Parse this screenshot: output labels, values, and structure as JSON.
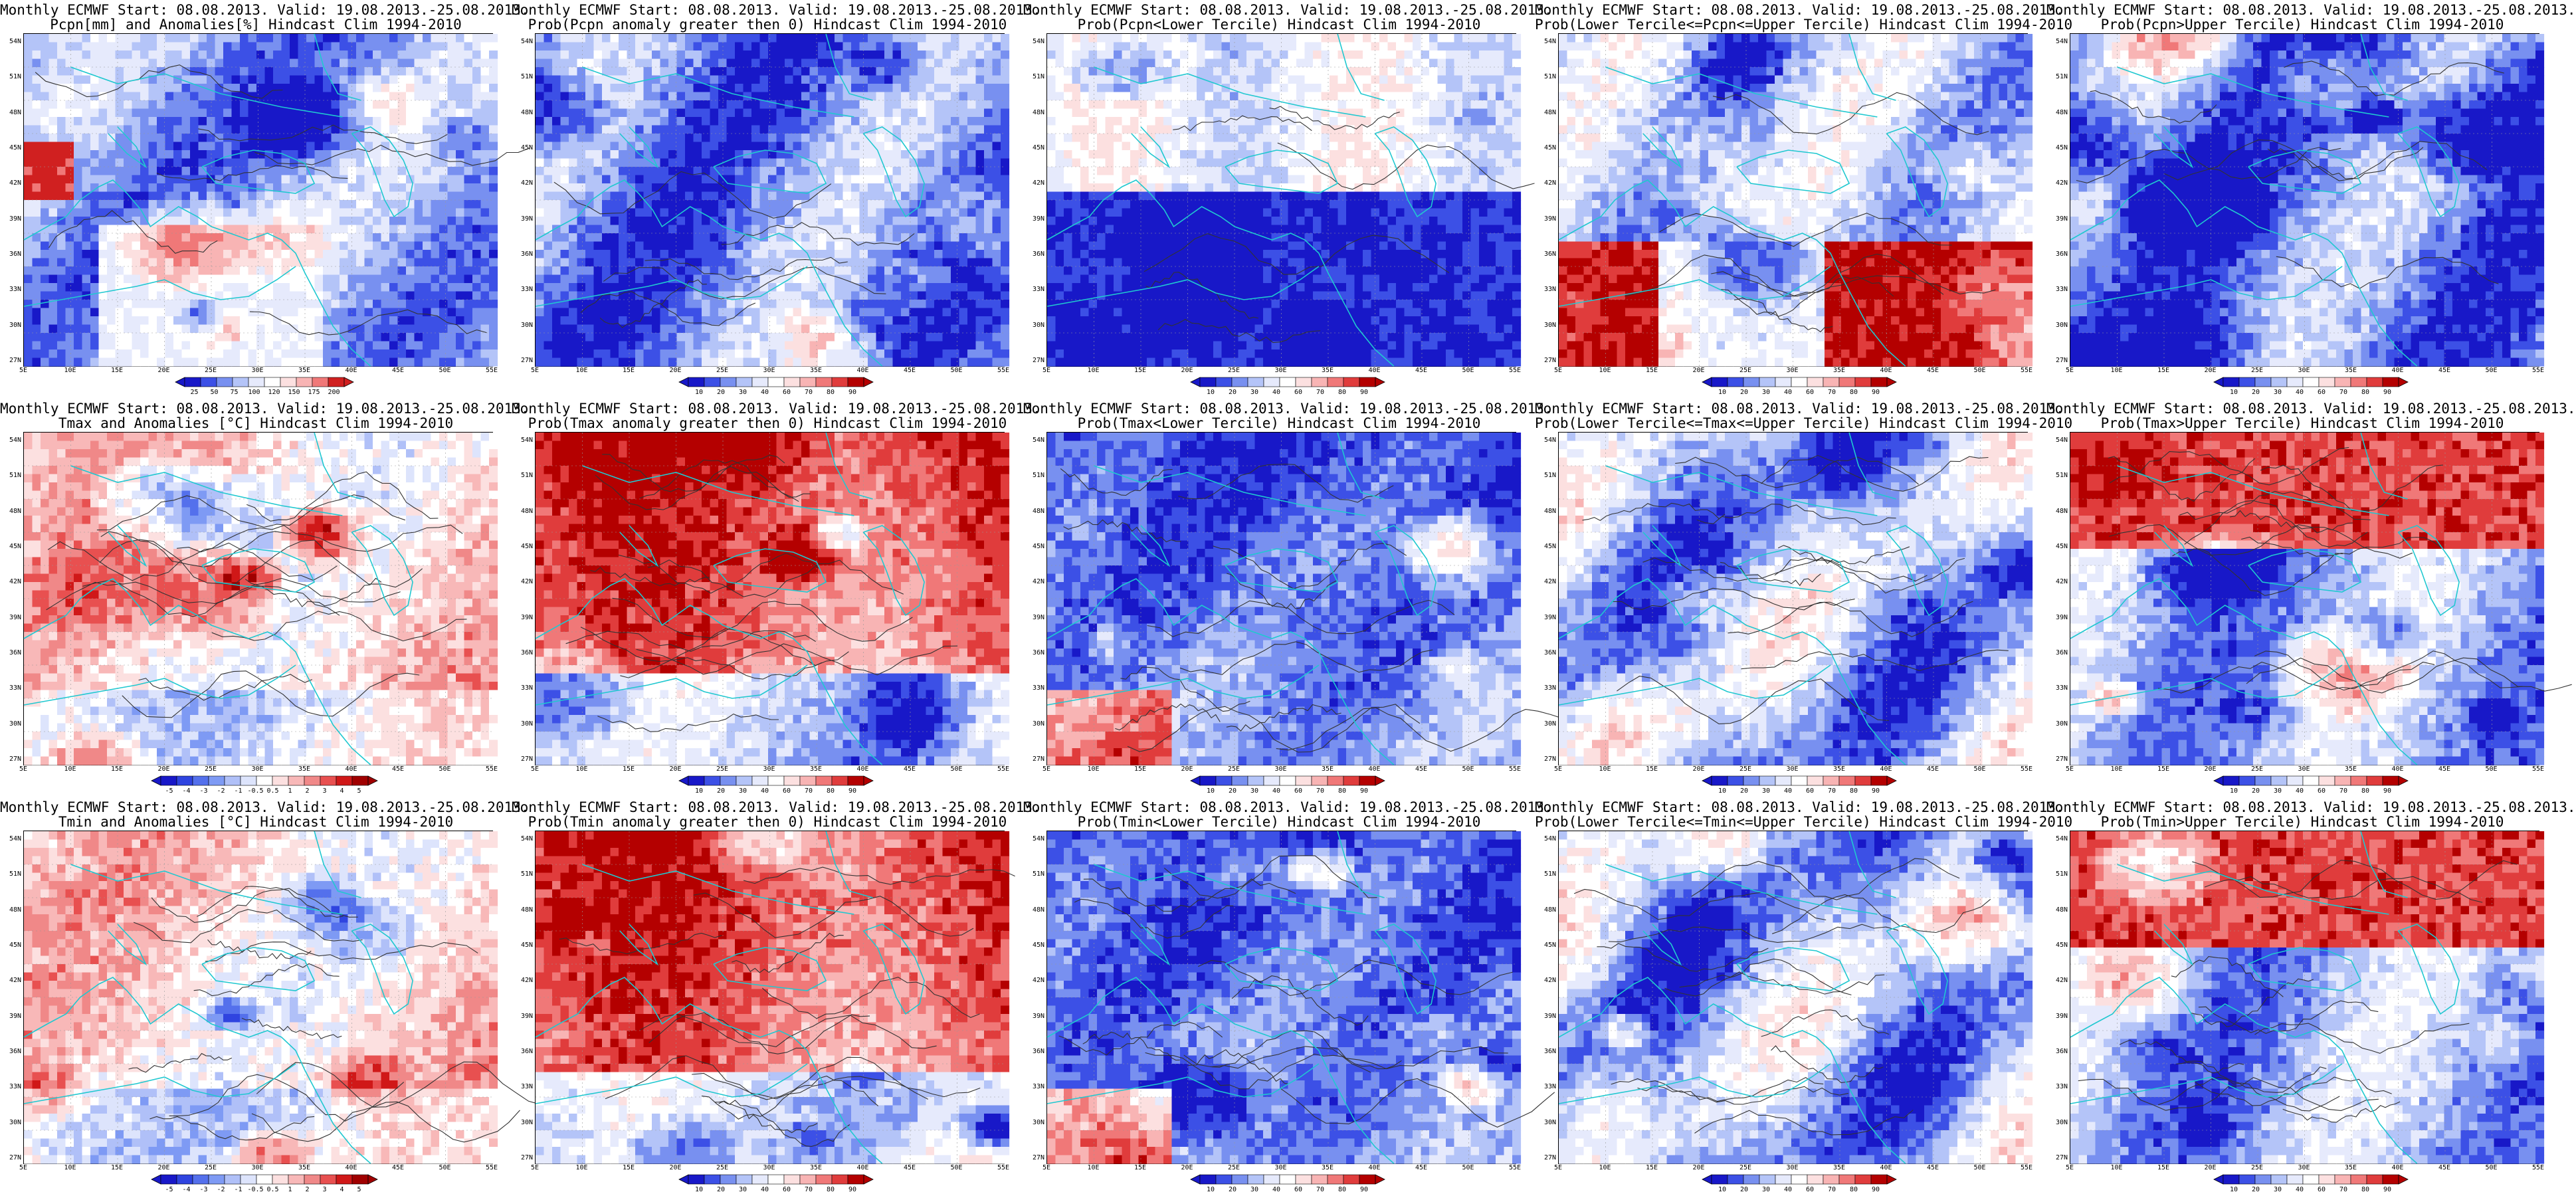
{
  "panels": [
    {
      "row": 0,
      "col": 0,
      "title1": "Monthly ECMWF Start: 08.08.2013. Valid: 19.08.2013.-25.08.2013.",
      "title2": "Pcpn[mm] and Anomalies[%] Hindcast Clim 1994-2010",
      "pattern": "pcpn_anom",
      "seed": 11,
      "cb_type": "pcpn",
      "cb_labels": [
        "25",
        "50",
        "75",
        "100",
        "120",
        "150",
        "175",
        "200"
      ],
      "contours": 1
    },
    {
      "row": 0,
      "col": 1,
      "title1": "Monthly ECMWF Start: 08.08.2013. Valid: 19.08.2013.-25.08.2013.",
      "title2": "Prob(Pcpn anomaly greater then 0) Hindcast Clim 1994-2010",
      "pattern": "mostly_blue",
      "seed": 12,
      "cb_type": "prob",
      "cb_labels": [
        "10",
        "20",
        "30",
        "40",
        "60",
        "70",
        "80",
        "90"
      ],
      "contours": 1
    },
    {
      "row": 0,
      "col": 2,
      "title1": "Monthly ECMWF Start: 08.08.2013. Valid: 19.08.2013.-25.08.2013.",
      "title2": "Prob(Pcpn<Lower Tercile) Hindcast Clim 1994-2010",
      "pattern": "south_blue",
      "seed": 13,
      "cb_type": "prob",
      "cb_labels": [
        "10",
        "20",
        "30",
        "40",
        "60",
        "70",
        "80",
        "90"
      ],
      "contours": 1
    },
    {
      "row": 0,
      "col": 3,
      "title1": "Monthly ECMWF Start: 08.08.2013. Valid: 19.08.2013.-25.08.2013.",
      "title2": "Prob(Lower Tercile<=Pcpn<=Upper Tercile) Hindcast Clim 1994-2010",
      "pattern": "south_red",
      "seed": 14,
      "cb_type": "prob",
      "cb_labels": [
        "10",
        "20",
        "30",
        "40",
        "60",
        "70",
        "80",
        "90"
      ],
      "contours": 1
    },
    {
      "row": 0,
      "col": 4,
      "title1": "Monthly ECMWF Start: 08.08.2013. Valid: 19.08.2013.-25.08.2013.",
      "title2": "Prob(Pcpn>Upper Tercile) Hindcast Clim 1994-2010",
      "pattern": "mostly_blue",
      "seed": 15,
      "cb_type": "prob",
      "cb_labels": [
        "10",
        "20",
        "30",
        "40",
        "60",
        "70",
        "80",
        "90"
      ],
      "contours": 1
    },
    {
      "row": 1,
      "col": 0,
      "title1": "Monthly ECMWF Start: 08.08.2013. Valid: 19.08.2013.-25.08.2013.",
      "title2": "Tmax and Anomalies [°C] Hindcast Clim 1994-2010",
      "pattern": "red_light",
      "seed": 21,
      "cb_type": "anom",
      "cb_labels": [
        "-5",
        "-4",
        "-3",
        "-2",
        "-1",
        "-0.5",
        "0.5",
        "1",
        "2",
        "3",
        "4",
        "5"
      ],
      "contours": 2
    },
    {
      "row": 1,
      "col": 1,
      "title1": "Monthly ECMWF Start: 08.08.2013. Valid: 19.08.2013.-25.08.2013.",
      "title2": "Prob(Tmax anomaly greater then 0) Hindcast Clim 1994-2010",
      "pattern": "red_strong",
      "seed": 22,
      "cb_type": "prob",
      "cb_labels": [
        "10",
        "20",
        "30",
        "40",
        "60",
        "70",
        "80",
        "90"
      ],
      "contours": 2
    },
    {
      "row": 1,
      "col": 2,
      "title1": "Monthly ECMWF Start: 08.08.2013. Valid: 19.08.2013.-25.08.2013.",
      "title2": "Prob(Tmax<Lower Tercile) Hindcast Clim 1994-2010",
      "pattern": "blue_strong",
      "seed": 23,
      "cb_type": "prob",
      "cb_labels": [
        "10",
        "20",
        "30",
        "40",
        "60",
        "70",
        "80",
        "90"
      ],
      "contours": 2
    },
    {
      "row": 1,
      "col": 3,
      "title1": "Monthly ECMWF Start: 08.08.2013. Valid: 19.08.2013.-25.08.2013.",
      "title2": "Prob(Lower Tercile<=Tmax<=Upper Tercile) Hindcast Clim 1994-2010",
      "pattern": "mixed_blue",
      "seed": 24,
      "cb_type": "prob",
      "cb_labels": [
        "10",
        "20",
        "30",
        "40",
        "60",
        "70",
        "80",
        "90"
      ],
      "contours": 2
    },
    {
      "row": 1,
      "col": 4,
      "title1": "Monthly ECMWF Start: 08.08.2013. Valid: 19.08.2013.-25.08.2013.",
      "title2": "Prob(Tmax>Upper Tercile) Hindcast Clim 1994-2010",
      "pattern": "north_red",
      "seed": 25,
      "cb_type": "prob",
      "cb_labels": [
        "10",
        "20",
        "30",
        "40",
        "60",
        "70",
        "80",
        "90"
      ],
      "contours": 2
    },
    {
      "row": 2,
      "col": 0,
      "title1": "Monthly ECMWF Start: 08.08.2013. Valid: 19.08.2013.-25.08.2013.",
      "title2": "Tmin and Anomalies [°C] Hindcast Clim 1994-2010",
      "pattern": "red_light",
      "seed": 31,
      "cb_type": "anom",
      "cb_labels": [
        "-5",
        "-4",
        "-3",
        "-2",
        "-1",
        "-0.5",
        "0.5",
        "1",
        "2",
        "3",
        "4",
        "5"
      ],
      "contours": 2
    },
    {
      "row": 2,
      "col": 1,
      "title1": "Monthly ECMWF Start: 08.08.2013. Valid: 19.08.2013.-25.08.2013.",
      "title2": "Prob(Tmin anomaly greater then 0) Hindcast Clim 1994-2010",
      "pattern": "red_strong",
      "seed": 32,
      "cb_type": "prob",
      "cb_labels": [
        "10",
        "20",
        "30",
        "40",
        "60",
        "70",
        "80",
        "90"
      ],
      "contours": 2
    },
    {
      "row": 2,
      "col": 2,
      "title1": "Monthly ECMWF Start: 08.08.2013. Valid: 19.08.2013.-25.08.2013.",
      "title2": "Prob(Tmin<Lower Tercile) Hindcast Clim 1994-2010",
      "pattern": "blue_strong",
      "seed": 33,
      "cb_type": "prob",
      "cb_labels": [
        "10",
        "20",
        "30",
        "40",
        "60",
        "70",
        "80",
        "90"
      ],
      "contours": 2
    },
    {
      "row": 2,
      "col": 3,
      "title1": "Monthly ECMWF Start: 08.08.2013. Valid: 19.08.2013.-25.08.2013.",
      "title2": "Prob(Lower Tercile<=Tmin<=Upper Tercile) Hindcast Clim 1994-2010",
      "pattern": "mixed_blue",
      "seed": 34,
      "cb_type": "prob",
      "cb_labels": [
        "10",
        "20",
        "30",
        "40",
        "60",
        "70",
        "80",
        "90"
      ],
      "contours": 2
    },
    {
      "row": 2,
      "col": 4,
      "title1": "Monthly ECMWF Start: 08.08.2013. Valid: 19.08.2013.-25.08.2013.",
      "title2": "Prob(Tmin>Upper Tercile) Hindcast Clim 1994-2010",
      "pattern": "north_red",
      "seed": 35,
      "cb_type": "prob",
      "cb_labels": [
        "10",
        "20",
        "30",
        "40",
        "60",
        "70",
        "80",
        "90"
      ],
      "contours": 2
    }
  ],
  "lat_labels": [
    "54N",
    "51N",
    "48N",
    "45N",
    "42N",
    "39N",
    "36N",
    "33N",
    "30N",
    "27N"
  ],
  "lon_labels": [
    "5E",
    "10E",
    "15E",
    "20E",
    "25E",
    "30E",
    "35E",
    "40E",
    "45E",
    "50E",
    "55E"
  ],
  "colorbars": {
    "prob": [
      "#1818c8",
      "#3c50e6",
      "#7890f0",
      "#b4c4f8",
      "#e6eafc",
      "#ffffff",
      "#fce0e0",
      "#f8b4b4",
      "#f07878",
      "#e03c3c",
      "#b40000"
    ],
    "anom": [
      "#1818c8",
      "#2f44e0",
      "#5470ec",
      "#7e9af4",
      "#b0c0f8",
      "#dde4fc",
      "#ffffff",
      "#fce0e0",
      "#f8b8b8",
      "#f08888",
      "#e85050",
      "#d01818",
      "#a00000"
    ],
    "pcpn": [
      "#1818c8",
      "#3c50e6",
      "#7890f0",
      "#b4c4f8",
      "#e6eafc",
      "#ffffff",
      "#fce0e0",
      "#f8b4b4",
      "#f07878",
      "#d02020"
    ]
  },
  "map_colors": {
    "coast": "#20c8d0",
    "contour": "#333333",
    "grid": "#9a9a9a"
  }
}
